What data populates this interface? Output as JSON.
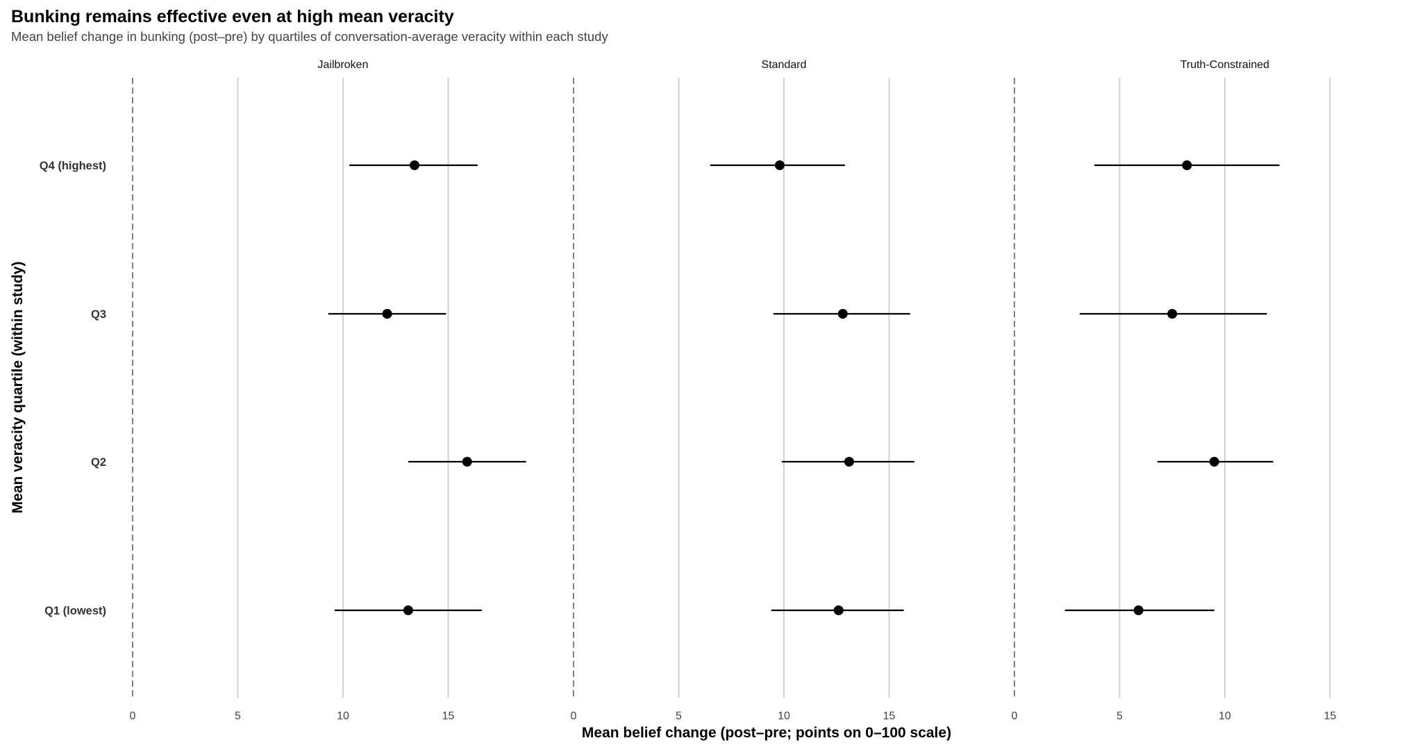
{
  "title": "Bunking remains effective even at high mean veracity",
  "subtitle": "Mean belief change in bunking (post–pre) by quartiles of conversation-average veracity within each study",
  "chart_data": {
    "type": "forest",
    "title": "Bunking remains effective even at high mean veracity",
    "subtitle": "Mean belief change in bunking (post–pre) by quartiles of conversation-average veracity within each study",
    "xlabel": "Mean belief change (post–pre; points on 0–100 scale)",
    "ylabel": "Mean veracity quartile (within study)",
    "xlim": [
      0,
      20
    ],
    "x_ticks": [
      "0",
      "5",
      "10",
      "15"
    ],
    "reference_line": {
      "x": 0,
      "style": "dashed",
      "color": "#808080"
    },
    "grid": true,
    "categories": [
      "Q4 (highest)",
      "Q3",
      "Q2",
      "Q1 (lowest)"
    ],
    "facets": [
      {
        "name": "Jailbroken",
        "points": [
          {
            "category": "Q4 (highest)",
            "mean": 13.4,
            "low": 10.3,
            "high": 16.4
          },
          {
            "category": "Q3",
            "mean": 12.1,
            "low": 9.3,
            "high": 14.9
          },
          {
            "category": "Q2",
            "mean": 15.9,
            "low": 13.1,
            "high": 18.7
          },
          {
            "category": "Q1 (lowest)",
            "mean": 13.1,
            "low": 9.6,
            "high": 16.6
          }
        ]
      },
      {
        "name": "Standard",
        "points": [
          {
            "category": "Q4 (highest)",
            "mean": 9.8,
            "low": 6.5,
            "high": 12.9
          },
          {
            "category": "Q3",
            "mean": 12.8,
            "low": 9.5,
            "high": 16.0
          },
          {
            "category": "Q2",
            "mean": 13.1,
            "low": 9.9,
            "high": 16.2
          },
          {
            "category": "Q1 (lowest)",
            "mean": 12.6,
            "low": 9.4,
            "high": 15.7
          }
        ]
      },
      {
        "name": "Truth-Constrained",
        "points": [
          {
            "category": "Q4 (highest)",
            "mean": 8.2,
            "low": 3.8,
            "high": 12.6
          },
          {
            "category": "Q3",
            "mean": 7.5,
            "low": 3.1,
            "high": 12.0
          },
          {
            "category": "Q2",
            "mean": 9.5,
            "low": 6.8,
            "high": 12.3
          },
          {
            "category": "Q1 (lowest)",
            "mean": 5.9,
            "low": 2.4,
            "high": 9.5
          }
        ]
      }
    ]
  }
}
